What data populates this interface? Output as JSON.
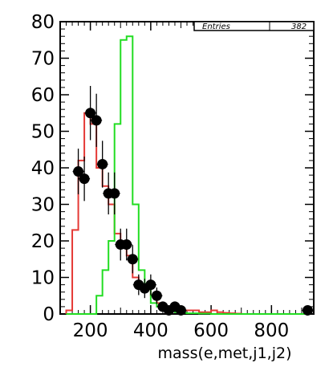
{
  "chart_data": {
    "type": "histogram",
    "xlabel": "mass(e,met,j1,j2)",
    "ylabel": "",
    "xlim": [
      100,
      940
    ],
    "ylim": [
      0,
      80
    ],
    "x_ticks": [
      200,
      400,
      600,
      800
    ],
    "y_ticks": [
      0,
      10,
      20,
      30,
      40,
      50,
      60,
      70,
      80
    ],
    "grid": false,
    "stats_box": {
      "label": "Entries",
      "value": "382"
    },
    "bin_width": 20,
    "bins_low_edges": [
      120,
      140,
      160,
      180,
      200,
      220,
      240,
      260,
      280,
      300,
      320,
      340,
      360,
      380,
      400,
      420,
      440,
      460,
      480,
      500,
      520,
      540,
      560,
      580,
      600,
      620,
      640,
      660,
      680,
      700,
      720,
      740,
      760,
      780,
      800,
      820,
      840,
      860,
      880,
      900
    ],
    "series": [
      {
        "kind": "points",
        "color": "#000000",
        "x": [
          160,
          180,
          200,
          220,
          240,
          260,
          280,
          300,
          320,
          340,
          360,
          380,
          400,
          420,
          440,
          460,
          480,
          500,
          520,
          540,
          560,
          580,
          600,
          620,
          640,
          660,
          680,
          700,
          720,
          740,
          760,
          780,
          800,
          820,
          840,
          860,
          880,
          900,
          920
        ],
        "values": [
          39,
          37,
          55,
          53,
          41,
          33,
          33,
          19,
          19,
          15,
          8,
          7,
          8,
          5,
          2,
          1,
          2,
          1,
          0,
          0,
          0,
          0,
          0,
          0,
          0,
          0,
          0,
          0,
          0,
          0,
          0,
          0,
          0,
          0,
          0,
          0,
          0,
          0,
          1
        ]
      },
      {
        "kind": "step",
        "color": "#e53935",
        "values": [
          1,
          23,
          42,
          55,
          52,
          40,
          35,
          30,
          22,
          20,
          16,
          10,
          8,
          7,
          5,
          3,
          2,
          1.5,
          1,
          1,
          1,
          1,
          0.5,
          0.5,
          1,
          0.5,
          0.3,
          0.2,
          0.1,
          0,
          0,
          0,
          0,
          0,
          0,
          0,
          0,
          0,
          0,
          0
        ]
      },
      {
        "kind": "step",
        "color": "#22dd22",
        "values": [
          0,
          0,
          0,
          0,
          0,
          5,
          12,
          20,
          52,
          75,
          76,
          30,
          12,
          7,
          3,
          2,
          1,
          0.7,
          0.5,
          0.3,
          0.2,
          0.2,
          0.1,
          0.1,
          0,
          0,
          0,
          0,
          0,
          0,
          0,
          0,
          0,
          0,
          0,
          0,
          0,
          0,
          0,
          0
        ]
      }
    ]
  }
}
